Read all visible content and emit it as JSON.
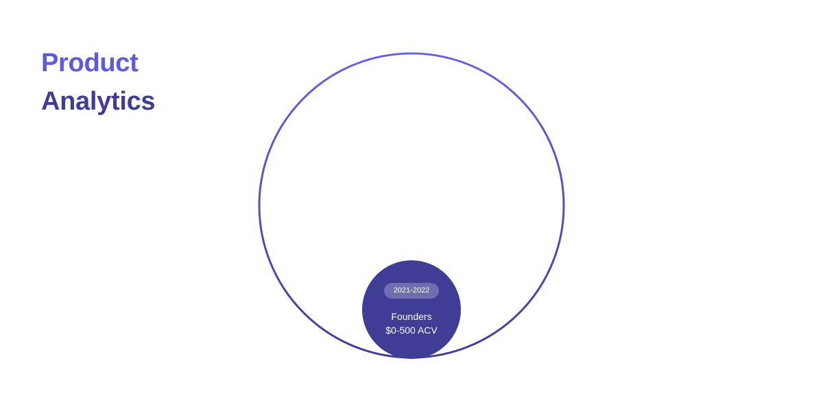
{
  "title": {
    "line1": "Product",
    "line2": "Analytics"
  },
  "diagram": {
    "segment": {
      "period": "2021-2022",
      "name": "Founders",
      "acv": "$0-500 ACV"
    }
  },
  "colors": {
    "accent_light": "#5b5bdb",
    "accent_dark": "#3f3d96",
    "ring_gradient_top": "#6564e0",
    "ring_gradient_bottom": "#3f3d96"
  }
}
